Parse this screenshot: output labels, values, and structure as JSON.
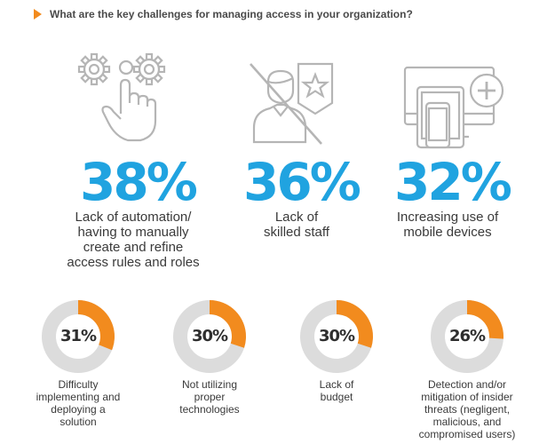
{
  "header": {
    "question": "What are the key challenges for managing access in your organization?"
  },
  "colors": {
    "accent": "#f28b1e",
    "headline": "#20a3e0",
    "ring": "#dcdcdc",
    "icon_line": "#b5b5b5"
  },
  "icons": [
    "gears-hand-icon",
    "person-badge-crossed-icon",
    "devices-plus-icon"
  ],
  "chart_data": [
    {
      "type": "table",
      "items": [
        {
          "value": 38,
          "label_text": "38%",
          "description": "Lack of automation/\nhaving to manually\ncreate and refine\naccess rules and roles"
        },
        {
          "value": 36,
          "label_text": "36%",
          "description": "Lack of\nskilled staff"
        },
        {
          "value": 32,
          "label_text": "32%",
          "description": "Increasing use of\nmobile devices"
        }
      ]
    },
    {
      "type": "pie",
      "items": [
        {
          "value": 31,
          "label_text": "31%",
          "description": "Difficulty\nimplementing and\ndeploying a\nsolution"
        },
        {
          "value": 30,
          "label_text": "30%",
          "description": "Not utilizing\nproper\ntechnologies"
        },
        {
          "value": 30,
          "label_text": "30%",
          "description": "Lack of\nbudget"
        },
        {
          "value": 26,
          "label_text": "26%",
          "description": "Detection and/or\nmitigation of insider\nthreats (negligent,\nmalicious, and\ncompromised users)"
        }
      ]
    }
  ]
}
